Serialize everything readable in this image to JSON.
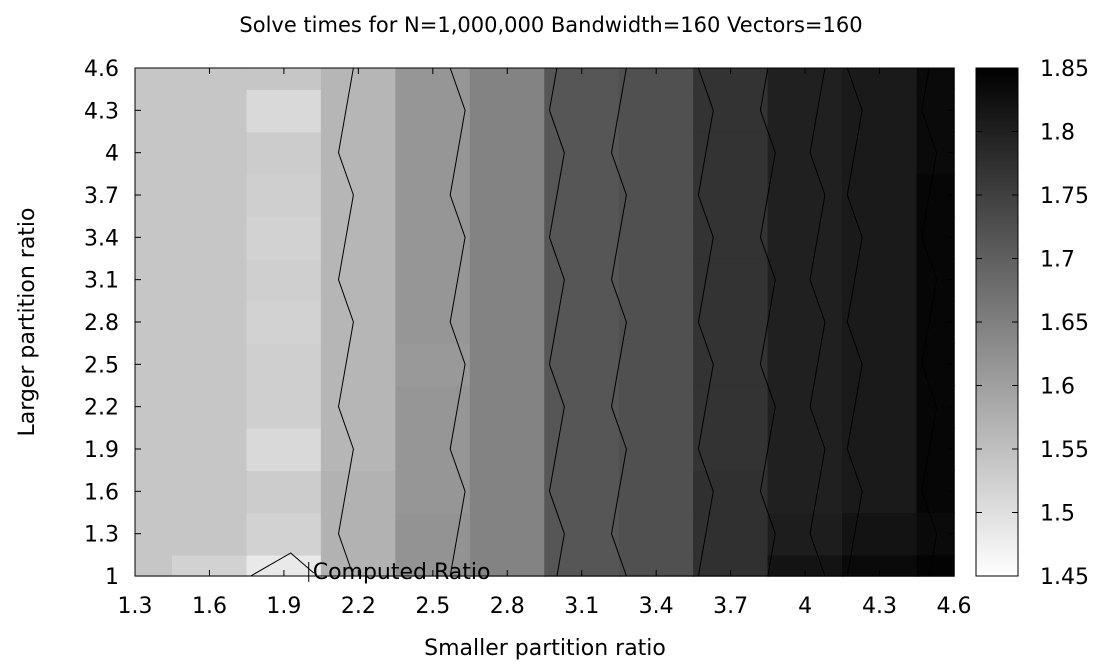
{
  "chart_data": {
    "type": "heatmap",
    "title": "Solve times for N=1,000,000 Bandwidth=160 Vectors=160",
    "xlabel": "Smaller partition ratio",
    "ylabel": "Larger partition ratio",
    "x_ticks": [
      "1.3",
      "1.6",
      "1.9",
      "2.2",
      "2.5",
      "2.8",
      "3.1",
      "3.4",
      "3.7",
      "4",
      "4.3",
      "4.6"
    ],
    "y_ticks": [
      "1",
      "1.3",
      "1.6",
      "1.9",
      "2.2",
      "2.5",
      "2.8",
      "3.1",
      "3.4",
      "3.7",
      "4",
      "4.3",
      "4.6"
    ],
    "xlim": [
      1.3,
      4.6
    ],
    "ylim": [
      1,
      4.6
    ],
    "colorbar": {
      "range": [
        1.45,
        1.85
      ],
      "ticks": [
        "1.45",
        "1.5",
        "1.55",
        "1.6",
        "1.65",
        "1.7",
        "1.75",
        "1.8",
        "1.85"
      ],
      "low_color": "#ffffff",
      "high_color": "#000000"
    },
    "x": [
      1.3,
      1.6,
      1.9,
      2.2,
      2.5,
      2.8,
      3.1,
      3.4,
      3.7,
      4.0,
      4.3,
      4.6
    ],
    "y": [
      1.0,
      1.3,
      1.6,
      1.9,
      2.2,
      2.5,
      2.8,
      3.1,
      3.4,
      3.7,
      4.0,
      4.3,
      4.6
    ],
    "z": [
      [
        1.54,
        1.52,
        1.485,
        1.57,
        1.62,
        1.645,
        1.715,
        1.725,
        1.775,
        1.82,
        1.835,
        1.845
      ],
      [
        1.54,
        1.54,
        1.52,
        1.57,
        1.62,
        1.645,
        1.715,
        1.725,
        1.775,
        1.805,
        1.82,
        1.835
      ],
      [
        1.54,
        1.54,
        1.53,
        1.57,
        1.615,
        1.645,
        1.715,
        1.725,
        1.775,
        1.8,
        1.81,
        1.84
      ],
      [
        1.54,
        1.54,
        1.51,
        1.565,
        1.615,
        1.645,
        1.715,
        1.725,
        1.77,
        1.8,
        1.81,
        1.84
      ],
      [
        1.54,
        1.54,
        1.525,
        1.565,
        1.615,
        1.645,
        1.715,
        1.725,
        1.77,
        1.8,
        1.81,
        1.84
      ],
      [
        1.54,
        1.54,
        1.525,
        1.565,
        1.61,
        1.645,
        1.715,
        1.725,
        1.77,
        1.8,
        1.81,
        1.84
      ],
      [
        1.54,
        1.54,
        1.52,
        1.565,
        1.615,
        1.645,
        1.715,
        1.725,
        1.77,
        1.8,
        1.81,
        1.84
      ],
      [
        1.54,
        1.54,
        1.525,
        1.565,
        1.615,
        1.645,
        1.715,
        1.725,
        1.77,
        1.8,
        1.81,
        1.84
      ],
      [
        1.54,
        1.54,
        1.52,
        1.565,
        1.615,
        1.645,
        1.715,
        1.725,
        1.77,
        1.8,
        1.81,
        1.84
      ],
      [
        1.54,
        1.54,
        1.525,
        1.565,
        1.615,
        1.645,
        1.715,
        1.725,
        1.77,
        1.8,
        1.81,
        1.84
      ],
      [
        1.54,
        1.54,
        1.53,
        1.565,
        1.615,
        1.645,
        1.715,
        1.725,
        1.77,
        1.8,
        1.81,
        1.835
      ],
      [
        1.54,
        1.54,
        1.51,
        1.565,
        1.615,
        1.645,
        1.715,
        1.725,
        1.77,
        1.8,
        1.81,
        1.835
      ],
      [
        1.54,
        1.54,
        1.54,
        1.565,
        1.615,
        1.645,
        1.715,
        1.725,
        1.77,
        1.8,
        1.81,
        1.835
      ]
    ],
    "contour_x_positions": [
      2.15,
      2.6,
      3.0,
      3.25,
      3.6,
      3.85,
      4.05,
      4.2,
      4.5
    ],
    "annotation": {
      "text": "Computed Ratio",
      "x": 2.0,
      "y": 1.0
    }
  }
}
